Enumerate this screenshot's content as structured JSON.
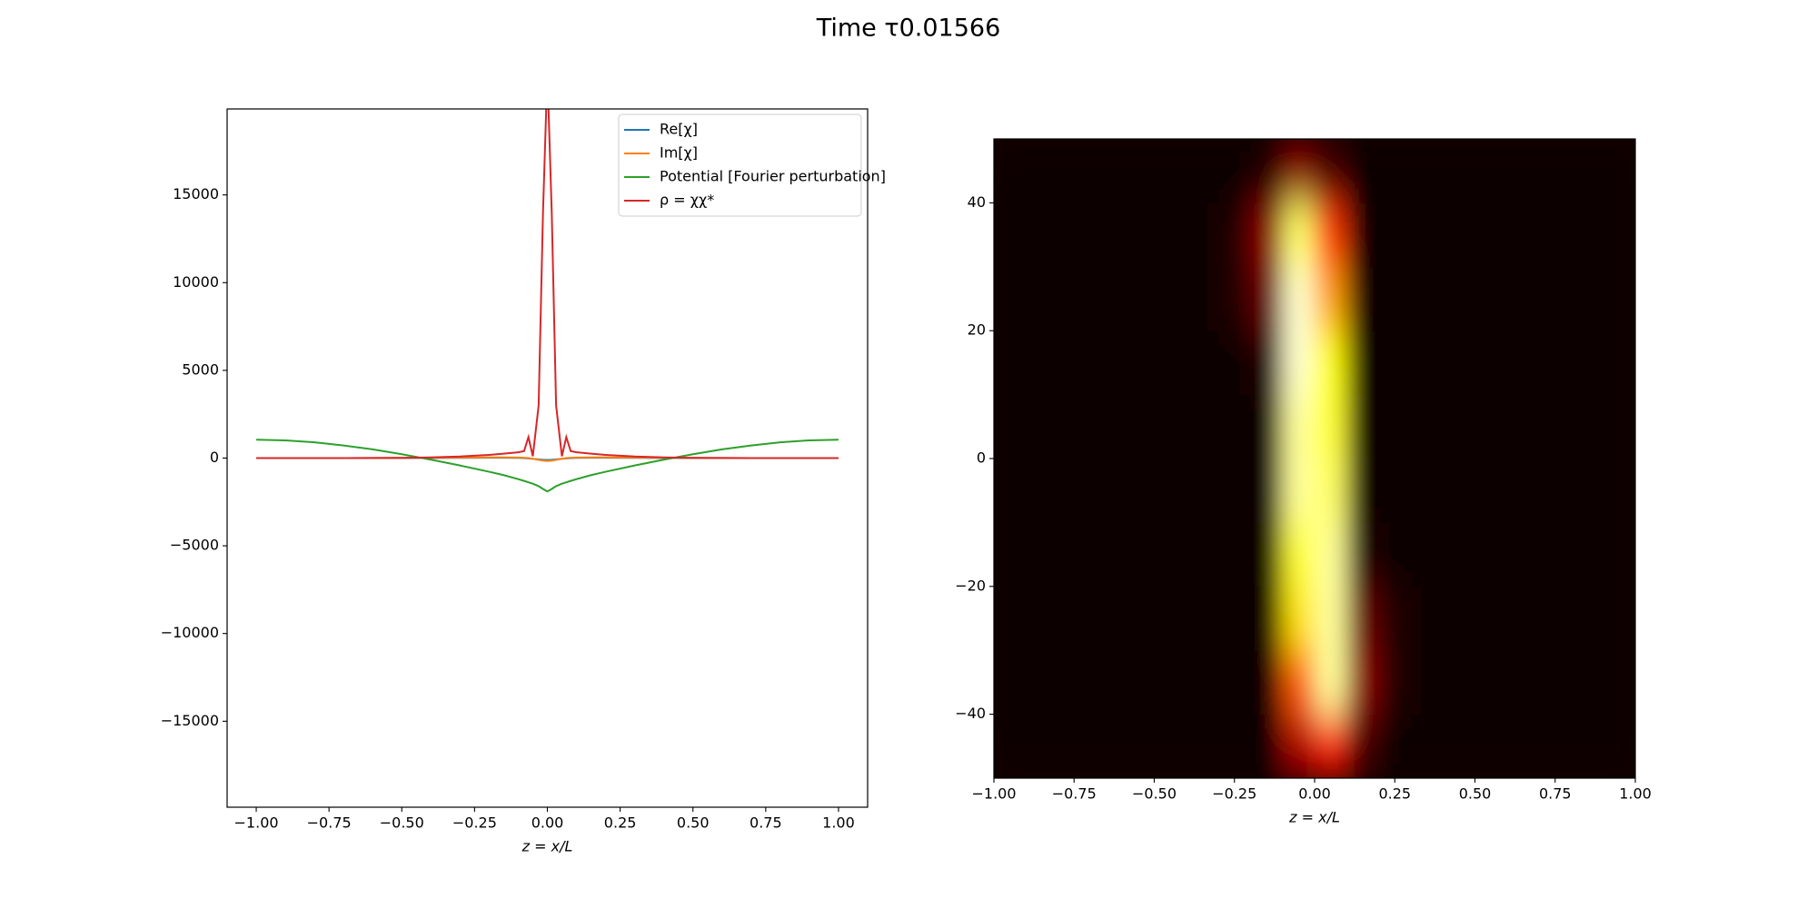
{
  "title": "Time τ0.01566",
  "chart_data": [
    {
      "type": "line",
      "xlabel": "z = x/L",
      "xlim": [
        -1.1,
        1.1
      ],
      "xticks": [
        {
          "value": -1,
          "label": "−1.00"
        },
        {
          "value": -0.75,
          "label": "−0.75"
        },
        {
          "value": -0.5,
          "label": "−0.50"
        },
        {
          "value": -0.25,
          "label": "−0.25"
        },
        {
          "value": 0,
          "label": "0.00"
        },
        {
          "value": 0.25,
          "label": "0.25"
        },
        {
          "value": 0.5,
          "label": "0.50"
        },
        {
          "value": 0.75,
          "label": "0.75"
        },
        {
          "value": 1,
          "label": "1.00"
        }
      ],
      "ylim": [
        -19900,
        19900
      ],
      "yticks": [
        {
          "value": -15000,
          "label": "−15000"
        },
        {
          "value": -10000,
          "label": "−10000"
        },
        {
          "value": -5000,
          "label": "−5000"
        },
        0,
        5000,
        10000,
        15000
      ],
      "legend": "upper right",
      "x": [
        -1,
        -0.9,
        -0.8,
        -0.7,
        -0.6,
        -0.5,
        -0.4,
        -0.3,
        -0.2,
        -0.15,
        -0.1,
        -0.08,
        -0.065,
        -0.05,
        -0.03,
        -0.015,
        0,
        0.015,
        0.03,
        0.05,
        0.065,
        0.08,
        0.1,
        0.15,
        0.2,
        0.3,
        0.4,
        0.5,
        0.6,
        0.7,
        0.8,
        0.9,
        1
      ],
      "series": [
        {
          "name": "Re[χ]",
          "color": "#1f77b4",
          "values": [
            0,
            0,
            0,
            0,
            0,
            0,
            5,
            10,
            20,
            20,
            10,
            0,
            -20,
            -40,
            -80,
            -100,
            -110,
            -100,
            -80,
            -40,
            -20,
            0,
            10,
            20,
            20,
            10,
            5,
            0,
            0,
            0,
            0,
            0,
            0
          ]
        },
        {
          "name": "Im[χ]",
          "color": "#ff7f0e",
          "values": [
            0,
            0,
            0,
            0,
            5,
            10,
            20,
            30,
            40,
            40,
            30,
            20,
            0,
            -40,
            -100,
            -140,
            -160,
            -140,
            -100,
            -40,
            0,
            20,
            30,
            40,
            40,
            30,
            20,
            10,
            5,
            0,
            0,
            0,
            0
          ]
        },
        {
          "name": "Potential [Fourier perturbation]",
          "color": "#2ca02c",
          "values": [
            1050,
            1010,
            900,
            720,
            500,
            220,
            -90,
            -420,
            -780,
            -970,
            -1200,
            -1300,
            -1380,
            -1460,
            -1600,
            -1760,
            -1900,
            -1760,
            -1600,
            -1460,
            -1380,
            -1300,
            -1200,
            -970,
            -780,
            -420,
            -90,
            220,
            500,
            720,
            900,
            1010,
            1050
          ]
        },
        {
          "name": "ρ = χχ*",
          "color": "#d62728",
          "values": [
            0,
            0,
            0,
            0,
            5,
            15,
            40,
            90,
            180,
            250,
            330,
            400,
            1200,
            100,
            3000,
            14000,
            22000,
            14000,
            3000,
            100,
            1200,
            400,
            330,
            250,
            180,
            90,
            40,
            15,
            5,
            0,
            0,
            0,
            0
          ]
        }
      ]
    },
    {
      "type": "heatmap",
      "xlabel": "z = x/L",
      "colormap": "hot",
      "xlim": [
        -1,
        1
      ],
      "xticks": [
        {
          "value": -1,
          "label": "−1.00"
        },
        {
          "value": -0.75,
          "label": "−0.75"
        },
        {
          "value": -0.5,
          "label": "−0.50"
        },
        {
          "value": -0.25,
          "label": "−0.25"
        },
        {
          "value": 0,
          "label": "0.00"
        },
        {
          "value": 0.25,
          "label": "0.25"
        },
        {
          "value": 0.5,
          "label": "0.50"
        },
        {
          "value": 0.75,
          "label": "0.75"
        },
        {
          "value": 1,
          "label": "1.00"
        }
      ],
      "ylim": [
        -50,
        50
      ],
      "yticks": [
        {
          "value": -40,
          "label": "−40"
        },
        {
          "value": -20,
          "label": "−20"
        },
        0,
        20,
        40
      ],
      "xbins": [
        -1,
        -0.9,
        -0.8,
        -0.7,
        -0.6,
        -0.5,
        -0.4,
        -0.3,
        -0.2,
        -0.1,
        0,
        0.1,
        0.2,
        0.3,
        0.4,
        0.5,
        0.6,
        0.7,
        0.8,
        0.9,
        1
      ],
      "ybins": [
        -50,
        -40,
        -30,
        -20,
        -10,
        0,
        10,
        20,
        30,
        40,
        50
      ],
      "values": [
        [
          0,
          0,
          0,
          0,
          0,
          0,
          0,
          0,
          0,
          0.25,
          0.4,
          0.1,
          0,
          0,
          0,
          0,
          0,
          0,
          0,
          0
        ],
        [
          0,
          0,
          0,
          0,
          0,
          0,
          0,
          0,
          0,
          0.5,
          0.9,
          0.2,
          0.05,
          0,
          0,
          0,
          0,
          0,
          0,
          0
        ],
        [
          0,
          0,
          0,
          0,
          0,
          0,
          0,
          0,
          0,
          0.7,
          0.9,
          0.15,
          0.05,
          0,
          0,
          0,
          0,
          0,
          0,
          0
        ],
        [
          0,
          0,
          0,
          0,
          0,
          0,
          0,
          0,
          0,
          0.8,
          0.9,
          0.05,
          0,
          0,
          0,
          0,
          0,
          0,
          0,
          0
        ],
        [
          0,
          0,
          0,
          0,
          0,
          0,
          0,
          0,
          0,
          0.9,
          0.85,
          0,
          0,
          0,
          0,
          0,
          0,
          0,
          0,
          0
        ],
        [
          0,
          0,
          0,
          0,
          0,
          0,
          0,
          0,
          0,
          0.9,
          0.8,
          0,
          0,
          0,
          0,
          0,
          0,
          0,
          0,
          0
        ],
        [
          0,
          0,
          0,
          0,
          0,
          0,
          0,
          0,
          0.05,
          0.95,
          0.75,
          0,
          0,
          0,
          0,
          0,
          0,
          0,
          0,
          0
        ],
        [
          0,
          0,
          0,
          0,
          0,
          0,
          0,
          0.05,
          0.15,
          0.95,
          0.6,
          0,
          0,
          0,
          0,
          0,
          0,
          0,
          0,
          0
        ],
        [
          0,
          0,
          0,
          0,
          0,
          0,
          0,
          0.05,
          0.2,
          0.85,
          0.45,
          0,
          0,
          0,
          0,
          0,
          0,
          0,
          0,
          0
        ],
        [
          0,
          0,
          0,
          0,
          0,
          0,
          0,
          0,
          0.05,
          0.2,
          0.1,
          0,
          0,
          0,
          0,
          0,
          0,
          0,
          0,
          0
        ]
      ]
    }
  ]
}
